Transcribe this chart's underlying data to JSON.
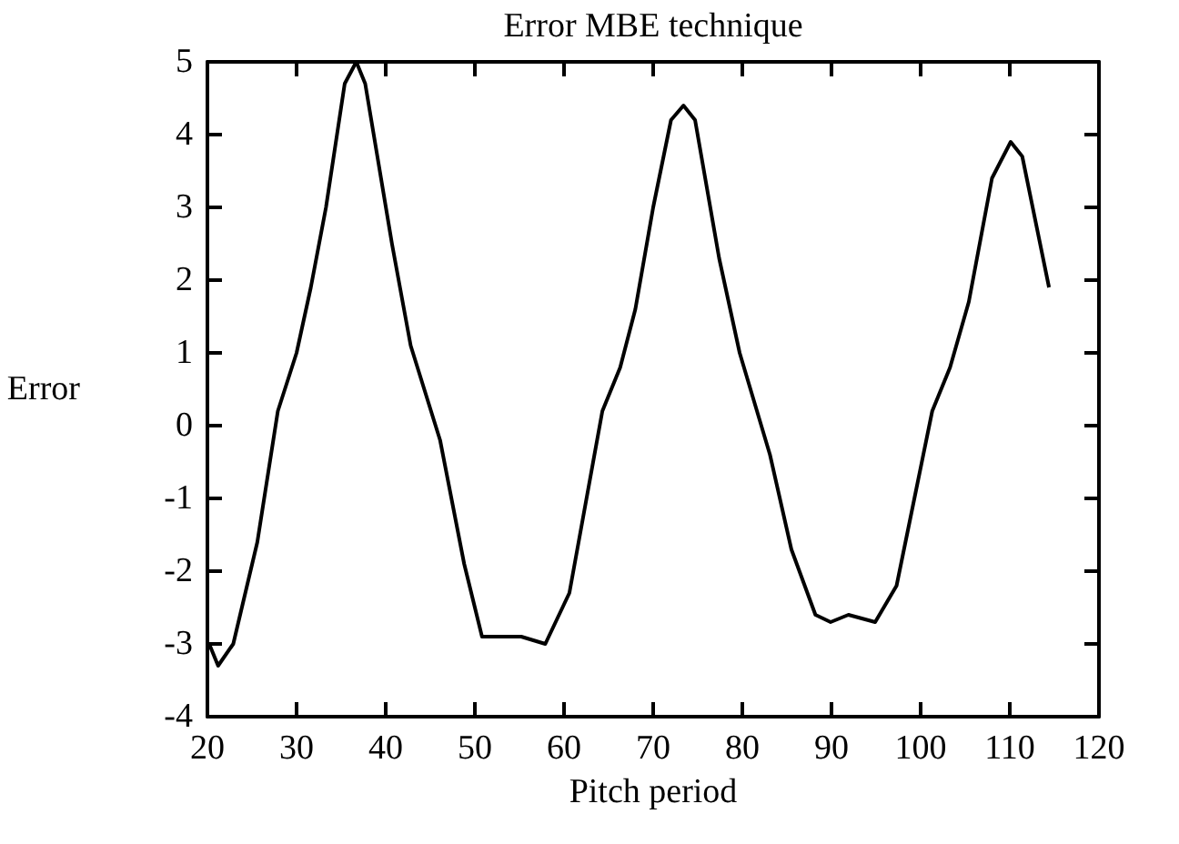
{
  "chart_data": {
    "type": "line",
    "title": "Error MBE technique",
    "xlabel": "Pitch period",
    "ylabel": "Error",
    "x": [
      20.2,
      21.2,
      22.9,
      25.6,
      27.9,
      30,
      31.6,
      33.3,
      35.4,
      36.7,
      37.7,
      40.7,
      42.8,
      46.1,
      48.8,
      50.8,
      52.9,
      55.2,
      57.9,
      60.6,
      64.3,
      66.3,
      68,
      70,
      72,
      73.4,
      74.7,
      77.4,
      79.7,
      83.1,
      85.5,
      88.2,
      89.9,
      91.9,
      94.9,
      97.3,
      99.3,
      101.3,
      103.3,
      105.4,
      108,
      110.1,
      111.4,
      114.4
    ],
    "series": [
      {
        "color": "#000000",
        "values": [
          -3.0,
          -3.3,
          -3.0,
          -1.6,
          0.2,
          1.0,
          1.9,
          3.0,
          4.7,
          5.0,
          4.7,
          2.5,
          1.1,
          -0.2,
          -1.9,
          -2.9,
          -2.9,
          -2.9,
          -3.0,
          -2.3,
          0.2,
          0.8,
          1.6,
          3.0,
          4.2,
          4.4,
          4.2,
          2.3,
          1.0,
          -0.4,
          -1.7,
          -2.6,
          -2.7,
          -2.6,
          -2.7,
          -2.2,
          -1.0,
          0.2,
          0.8,
          1.7,
          3.4,
          3.9,
          3.7,
          1.9
        ]
      }
    ],
    "xlim": [
      20,
      120
    ],
    "xticks": [
      20,
      30,
      40,
      50,
      60,
      70,
      80,
      90,
      100,
      110,
      120
    ],
    "ylim": [
      -4,
      5
    ],
    "yticks": [
      -4,
      -3,
      -2,
      -1,
      0,
      1,
      2,
      3,
      4,
      5
    ],
    "grid": false,
    "marker": "none",
    "line_style": "solid"
  }
}
